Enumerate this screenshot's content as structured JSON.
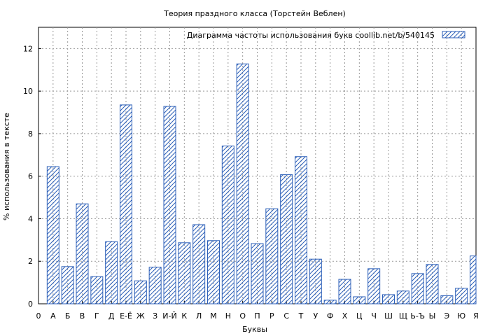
{
  "chart_data": {
    "type": "bar",
    "title": "Теория праздного класса (Торстейн Веблен)",
    "xlabel": "Буквы",
    "ylabel": "% использования в тексте",
    "ylim": [
      0,
      13
    ],
    "yticks": [
      0,
      2,
      4,
      6,
      8,
      10,
      12
    ],
    "grid": true,
    "legend_position": "top-right",
    "series": [
      {
        "name": "Диаграмма частоты использования букв  coollib.net/b/540145",
        "color": "#2c5fb8",
        "pattern": "diagonal-hatch",
        "values": [
          6.45,
          1.75,
          4.7,
          1.28,
          2.92,
          9.35,
          1.08,
          1.72,
          9.28,
          2.87,
          3.72,
          2.97,
          7.42,
          11.28,
          2.83,
          4.47,
          6.07,
          6.92,
          2.1,
          0.17,
          1.15,
          0.33,
          1.65,
          0.43,
          0.6,
          1.42,
          1.85,
          0.38,
          0.73,
          2.25
        ]
      }
    ],
    "categories": [
      "А",
      "Б",
      "В",
      "Г",
      "Д",
      "Е-Ё",
      "Ж",
      "З",
      "И-Й",
      "К",
      "Л",
      "М",
      "Н",
      "О",
      "П",
      "Р",
      "С",
      "Т",
      "У",
      "Ф",
      "Х",
      "Ц",
      "Ч",
      "Ш",
      "Щ",
      "Ь-Ъ",
      "Ы",
      "Э",
      "Ю",
      "Я"
    ],
    "x_tick_labels": [
      "0",
      "А",
      "Б",
      "В",
      "Г",
      "Д",
      "Е-Ё",
      "Ж",
      "З",
      "И-Й",
      "К",
      "Л",
      "М",
      "Н",
      "О",
      "П",
      "Р",
      "С",
      "Т",
      "У",
      "Ф",
      "Х",
      "Ц",
      "Ч",
      "Ш",
      "Щ",
      "Ь-Ъ",
      "Ы",
      "Э",
      "Ю",
      "Я"
    ]
  }
}
